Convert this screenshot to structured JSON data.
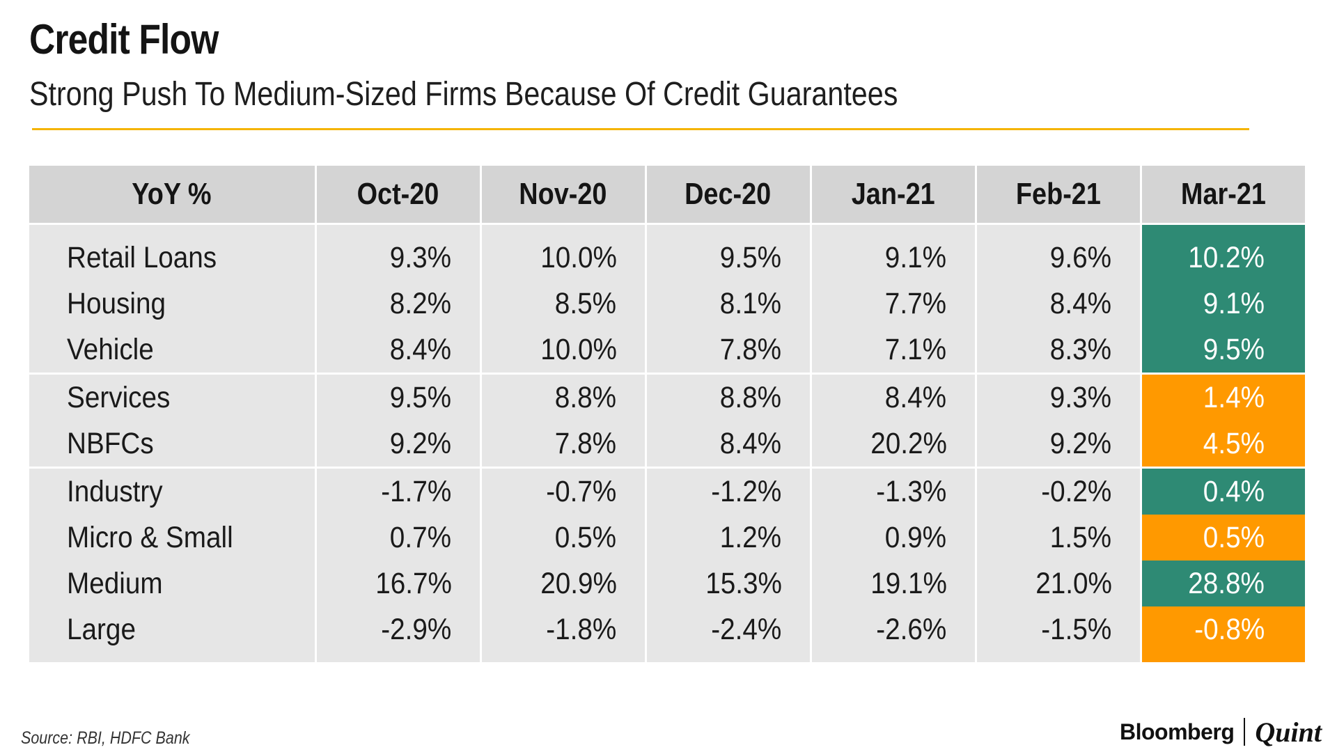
{
  "title": "Credit Flow",
  "subtitle": "Strong Push To Medium-Sized Firms Because Of Credit Guarantees",
  "source": "Source: RBI, HDFC Bank",
  "brand": {
    "left": "Bloomberg",
    "right": "Quint"
  },
  "colors": {
    "rule": "#f5b400",
    "header_bg": "#d4d4d4",
    "body_bg": "#e6e6e6",
    "highlight_green": "#2e8a74",
    "highlight_orange": "#ff9900"
  },
  "chart_data": {
    "type": "table",
    "title": "Credit Flow",
    "subtitle": "Strong Push To Medium-Sized Firms Because Of Credit Guarantees",
    "columns": [
      "YoY %",
      "Oct-20",
      "Nov-20",
      "Dec-20",
      "Jan-21",
      "Feb-21",
      "Mar-21"
    ],
    "rows": [
      {
        "label": "Retail Loans",
        "values": [
          "9.3%",
          "10.0%",
          "9.5%",
          "9.1%",
          "9.6%",
          "10.2%"
        ],
        "highlight": "green",
        "group_start": false
      },
      {
        "label": "Housing",
        "values": [
          "8.2%",
          "8.5%",
          "8.1%",
          "7.7%",
          "8.4%",
          "9.1%"
        ],
        "highlight": "green",
        "group_start": false
      },
      {
        "label": "Vehicle",
        "values": [
          "8.4%",
          "10.0%",
          "7.8%",
          "7.1%",
          "8.3%",
          "9.5%"
        ],
        "highlight": "green",
        "group_start": false
      },
      {
        "label": "Services",
        "values": [
          "9.5%",
          "8.8%",
          "8.8%",
          "8.4%",
          "9.3%",
          "1.4%"
        ],
        "highlight": "orange",
        "group_start": true
      },
      {
        "label": "NBFCs",
        "values": [
          "9.2%",
          "7.8%",
          "8.4%",
          "20.2%",
          "9.2%",
          "4.5%"
        ],
        "highlight": "orange",
        "group_start": false
      },
      {
        "label": "Industry",
        "values": [
          "-1.7%",
          "-0.7%",
          "-1.2%",
          "-1.3%",
          "-0.2%",
          "0.4%"
        ],
        "highlight": "green",
        "group_start": true
      },
      {
        "label": "Micro & Small",
        "values": [
          "0.7%",
          "0.5%",
          "1.2%",
          "0.9%",
          "1.5%",
          "0.5%"
        ],
        "highlight": "orange",
        "group_start": false
      },
      {
        "label": "Medium",
        "values": [
          "16.7%",
          "20.9%",
          "15.3%",
          "19.1%",
          "21.0%",
          "28.8%"
        ],
        "highlight": "green",
        "group_start": false
      },
      {
        "label": "Large",
        "values": [
          "-2.9%",
          "-1.8%",
          "-2.4%",
          "-2.6%",
          "-1.5%",
          "-0.8%"
        ],
        "highlight": "orange",
        "group_start": false
      }
    ]
  }
}
